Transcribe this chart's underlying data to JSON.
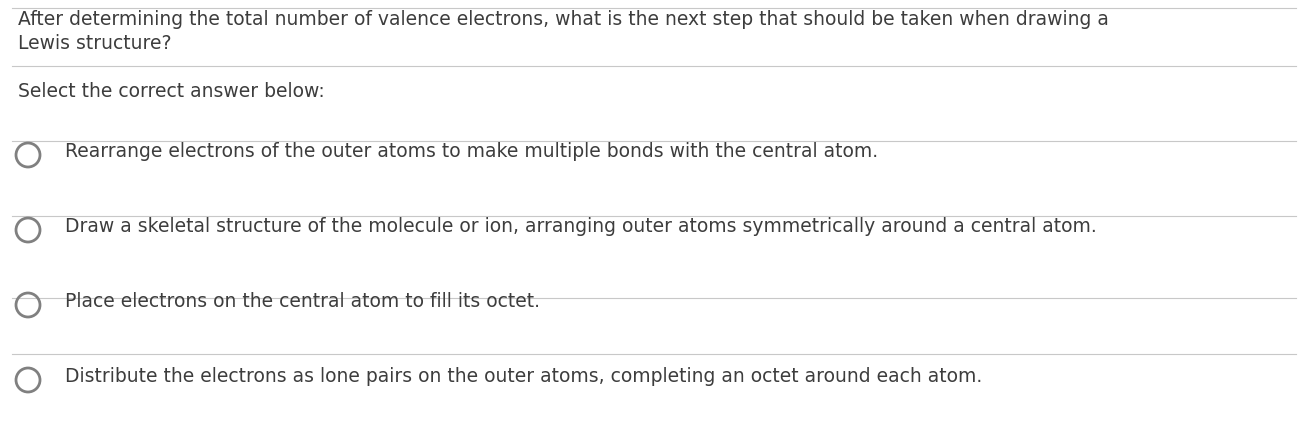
{
  "background_color": "#ffffff",
  "question_text_line1": "After determining the total number of valence electrons, what is the next step that should be taken when drawing a",
  "question_text_line2": "Lewis structure?",
  "subheading": "Select the correct answer below:",
  "options": [
    "Rearrange electrons of the outer atoms to make multiple bonds with the central atom.",
    "Draw a skeletal structure of the molecule or ion, arranging outer atoms symmetrically around a central atom.",
    "Place electrons on the central atom to fill its octet.",
    "Distribute the electrons as lone pairs on the outer atoms, completing an octet around each atom."
  ],
  "text_color": "#3d3d3d",
  "line_color": "#c8c8c8",
  "circle_edge_color": "#808080",
  "font_size_question": 13.5,
  "font_size_subheading": 13.5,
  "font_size_options": 13.5,
  "figsize": [
    13.06,
    4.27
  ],
  "dpi": 100
}
